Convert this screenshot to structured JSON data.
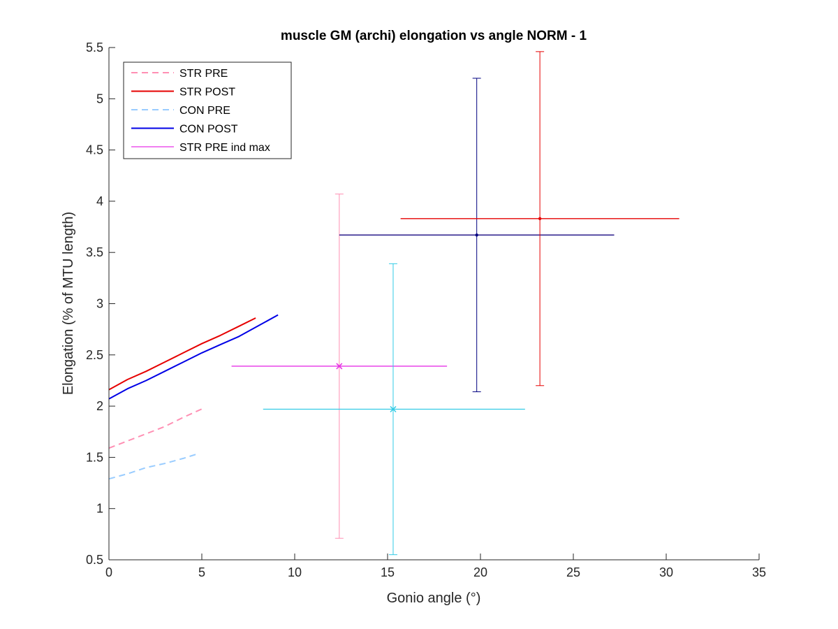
{
  "chart_data": {
    "type": "line",
    "title": "muscle GM (archi) elongation vs angle NORM - 1",
    "xlabel": "Gonio angle (°)",
    "ylabel": "Elongation (% of MTU length)",
    "xlim": [
      0,
      35
    ],
    "ylim": [
      0.5,
      5.5
    ],
    "xticks": [
      0,
      5,
      10,
      15,
      20,
      25,
      30,
      35
    ],
    "yticks": [
      0.5,
      1,
      1.5,
      2,
      2.5,
      3,
      3.5,
      4,
      4.5,
      5,
      5.5
    ],
    "grid": false,
    "legend_position": "top-left",
    "series": [
      {
        "name": "STR PRE",
        "color": "#ff8fb3",
        "style": "dashed",
        "x": [
          0,
          1,
          2,
          3,
          4,
          5.1
        ],
        "y": [
          1.59,
          1.66,
          1.73,
          1.8,
          1.89,
          1.98
        ]
      },
      {
        "name": "STR POST",
        "color": "#e60000",
        "style": "solid",
        "x": [
          0,
          1,
          2,
          3,
          4,
          5,
          6,
          7,
          7.9
        ],
        "y": [
          2.16,
          2.26,
          2.34,
          2.43,
          2.52,
          2.61,
          2.69,
          2.78,
          2.86
        ]
      },
      {
        "name": "CON PRE",
        "color": "#99ccff",
        "style": "dashed",
        "x": [
          0,
          1,
          2,
          3,
          4,
          4.7
        ],
        "y": [
          1.29,
          1.34,
          1.4,
          1.44,
          1.49,
          1.53
        ]
      },
      {
        "name": "CON POST",
        "color": "#0000e6",
        "style": "solid",
        "x": [
          0,
          1,
          2,
          3,
          4,
          5,
          6,
          7,
          8,
          9.1
        ],
        "y": [
          2.07,
          2.17,
          2.25,
          2.34,
          2.43,
          2.52,
          2.6,
          2.68,
          2.78,
          2.89
        ]
      },
      {
        "name": "STR PRE ind max",
        "color": "#e633e6",
        "style": "solid",
        "x": [],
        "y": []
      }
    ],
    "errorbars": [
      {
        "color": "#ff8fb3",
        "marker": "none",
        "x": 12.4,
        "y": 3.67,
        "x_low": 12.4,
        "x_high": 27.2,
        "y_low": 0.71,
        "y_high": 4.07
      },
      {
        "color": "#e633e6",
        "marker": "x",
        "x": 12.4,
        "y": 2.39,
        "x_low": 6.6,
        "x_high": 18.2,
        "y_low": 2.39,
        "y_high": 2.39
      },
      {
        "color": "#33cce6",
        "marker": "x",
        "x": 15.3,
        "y": 1.97,
        "x_low": 8.3,
        "x_high": 22.4,
        "y_low": 0.55,
        "y_high": 3.39
      },
      {
        "color": "#000080",
        "marker": "dot",
        "x": 19.8,
        "y": 3.67,
        "x_low": 12.4,
        "x_high": 27.2,
        "y_low": 2.14,
        "y_high": 5.2
      },
      {
        "color": "#e60000",
        "marker": "dot",
        "x": 23.2,
        "y": 3.83,
        "x_low": 15.7,
        "x_high": 30.7,
        "y_low": 2.2,
        "y_high": 5.46
      }
    ]
  }
}
